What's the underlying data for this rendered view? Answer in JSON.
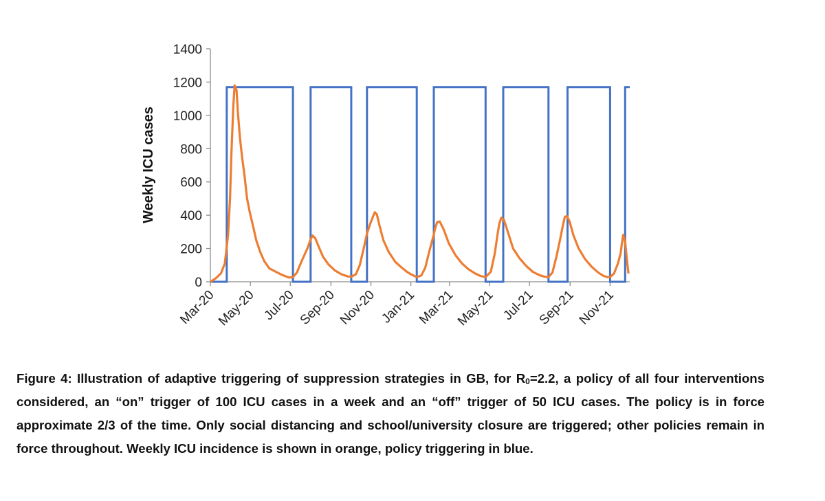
{
  "chart_data": {
    "type": "line",
    "title": "",
    "xlabel": "",
    "ylabel": "Weekly ICU cases",
    "ylim": [
      0,
      1400
    ],
    "yticks": [
      0,
      200,
      400,
      600,
      800,
      1000,
      1200,
      1400
    ],
    "xlim": [
      0,
      640
    ],
    "x_unit": "days since 1 Mar 2020",
    "xtick_positions": [
      0,
      61,
      122,
      184,
      245,
      306,
      365,
      426,
      487,
      549,
      610
    ],
    "xtick_labels": [
      "Mar-20",
      "May-20",
      "Jul-20",
      "Sep-20",
      "Nov-20",
      "Jan-21",
      "Mar-21",
      "May-21",
      "Jul-21",
      "Sep-21",
      "Nov-21"
    ],
    "grid": false,
    "legend": "none",
    "series": [
      {
        "name": "Policy triggering",
        "color": "#4472C4",
        "step": true,
        "x": [
          0,
          25,
          25,
          126,
          126,
          153,
          153,
          215,
          215,
          239,
          239,
          315,
          315,
          341,
          341,
          420,
          420,
          447,
          447,
          516,
          516,
          545,
          545,
          610,
          610,
          633,
          633,
          640
        ],
        "y": [
          0,
          0,
          1170,
          1170,
          0,
          0,
          1170,
          1170,
          0,
          0,
          1170,
          1170,
          0,
          0,
          1170,
          1170,
          0,
          0,
          1170,
          1170,
          0,
          0,
          1170,
          1170,
          0,
          0,
          1170,
          1170
        ]
      },
      {
        "name": "Weekly ICU incidence",
        "color": "#ED7D31",
        "step": false,
        "x": [
          0,
          8,
          16,
          22,
          27,
          30,
          32,
          35,
          37,
          40,
          42,
          45,
          48,
          52,
          56,
          60,
          66,
          70,
          76,
          82,
          90,
          100,
          110,
          120,
          126,
          132,
          140,
          148,
          153,
          156,
          160,
          166,
          172,
          180,
          190,
          200,
          210,
          215,
          222,
          228,
          234,
          239,
          244,
          248,
          251,
          254,
          258,
          264,
          272,
          282,
          292,
          300,
          306,
          315,
          322,
          328,
          334,
          340,
          343,
          346,
          350,
          356,
          364,
          374,
          384,
          394,
          404,
          412,
          420,
          428,
          434,
          438,
          441,
          444,
          448,
          454,
          462,
          472,
          482,
          492,
          502,
          510,
          516,
          522,
          528,
          534,
          538,
          541,
          544,
          548,
          554,
          562,
          572,
          582,
          592,
          600,
          606,
          610,
          616,
          622,
          626,
          628,
          630,
          633,
          636,
          638
        ],
        "y": [
          0,
          20,
          50,
          110,
          280,
          500,
          760,
          1060,
          1180,
          1150,
          1020,
          870,
          760,
          640,
          500,
          420,
          320,
          250,
          180,
          125,
          80,
          60,
          40,
          25,
          28,
          55,
          130,
          200,
          255,
          278,
          262,
          205,
          150,
          105,
          68,
          45,
          32,
          30,
          45,
          100,
          200,
          290,
          350,
          390,
          418,
          405,
          340,
          250,
          180,
          120,
          85,
          60,
          45,
          28,
          38,
          85,
          180,
          270,
          320,
          358,
          362,
          315,
          230,
          160,
          110,
          75,
          50,
          35,
          28,
          60,
          170,
          280,
          350,
          385,
          372,
          300,
          200,
          140,
          95,
          60,
          40,
          30,
          28,
          55,
          150,
          260,
          340,
          390,
          395,
          365,
          280,
          200,
          135,
          90,
          55,
          35,
          28,
          28,
          50,
          110,
          170,
          230,
          282,
          240,
          120,
          50
        ]
      }
    ]
  },
  "caption": {
    "part1": "Figure 4: Illustration of adaptive triggering of suppression strategies in GB, for R",
    "subscript": "0",
    "part2": "=2.2, a policy of all four interventions considered, an “on” trigger of 100 ICU cases in a week and an “off” trigger of 50 ICU cases.  The policy is in force approximate 2/3 of the time. Only social distancing and school/university closure are triggered; other policies remain in force throughout. Weekly ICU incidence is shown in orange, policy triggering in blue."
  }
}
